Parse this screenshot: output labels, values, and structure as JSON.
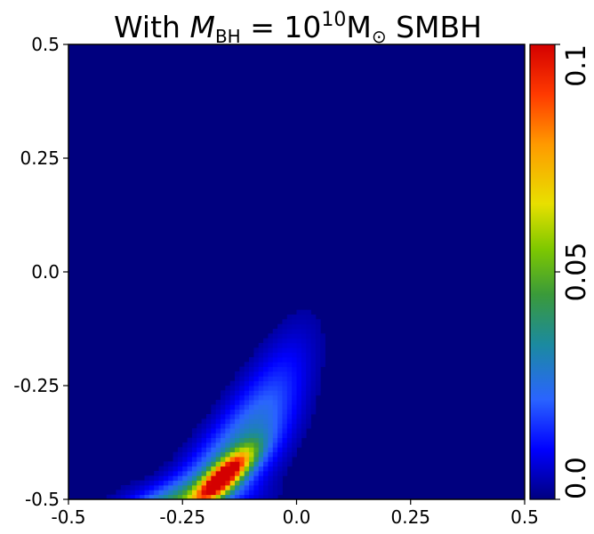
{
  "chart_data": {
    "type": "heatmap",
    "title": {
      "prefix": "With ",
      "var": "M",
      "var_sub": "BH",
      "equals": " = 10",
      "exp": "10",
      "unit": "M",
      "unit_sub": "⊙",
      "suffix": " SMBH"
    },
    "xlim": [
      -0.5,
      0.5
    ],
    "ylim": [
      -0.5,
      0.5
    ],
    "x_ticks": [
      {
        "value": -0.5,
        "label": "-0.5"
      },
      {
        "value": -0.25,
        "label": "-0.25"
      },
      {
        "value": 0.0,
        "label": "0.0"
      },
      {
        "value": 0.25,
        "label": "0.25"
      },
      {
        "value": 0.5,
        "label": "0.5"
      }
    ],
    "y_ticks": [
      {
        "value": 0.5,
        "label": "0.5"
      },
      {
        "value": 0.25,
        "label": "0.25"
      },
      {
        "value": 0.0,
        "label": "0.0"
      },
      {
        "value": -0.25,
        "label": "-0.25"
      },
      {
        "value": -0.5,
        "label": "-0.5"
      }
    ],
    "colorbar": {
      "range": [
        0.0,
        0.1
      ],
      "ticks": [
        {
          "value": 0.0,
          "label": "0.0"
        },
        {
          "value": 0.05,
          "label": "0.05"
        },
        {
          "value": 0.1,
          "label": "0.1"
        }
      ],
      "colormap": "jet"
    },
    "grid": false,
    "feature": {
      "description_values": "peak",
      "peak_x": -0.16,
      "peak_y": -0.45,
      "peak_value": 0.1
    }
  }
}
